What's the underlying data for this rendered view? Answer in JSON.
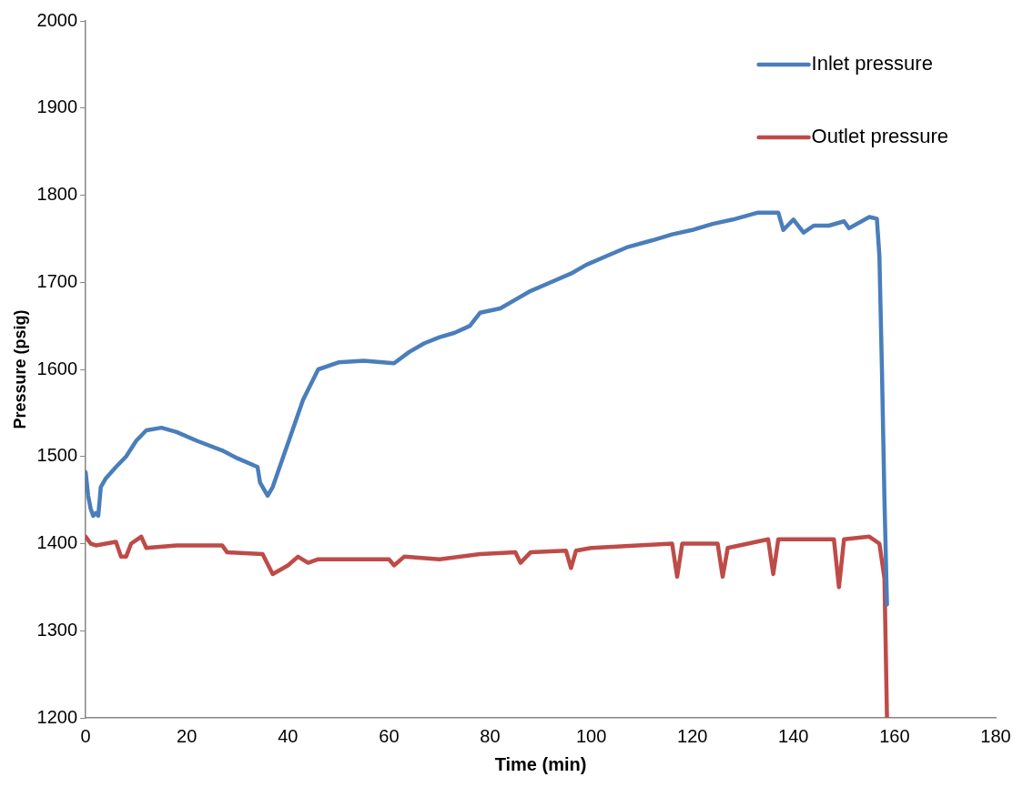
{
  "chart_data": {
    "type": "line",
    "xlabel": "Time (min)",
    "ylabel": "Pressure (psig)",
    "xlim": [
      0,
      180
    ],
    "xticks": [
      0,
      20,
      40,
      60,
      80,
      100,
      120,
      140,
      160,
      180
    ],
    "ylim": [
      1200,
      2000
    ],
    "yticks": [
      1200,
      1300,
      1400,
      1500,
      1600,
      1700,
      1800,
      1900,
      2000
    ],
    "grid": false,
    "legend": "top right",
    "marker": "none",
    "line_style": "solid",
    "series": [
      {
        "name": "Inlet pressure",
        "color": "#4a7ebb",
        "x": [
          0,
          0.5,
          1,
          1.5,
          2,
          2.5,
          3,
          4,
          6,
          8,
          10,
          12,
          15,
          18,
          22,
          27,
          30,
          34,
          34.5,
          36,
          37,
          40,
          43,
          46,
          50,
          55,
          61,
          64,
          67,
          70,
          73,
          76,
          78,
          82,
          85,
          88,
          92,
          96,
          99,
          103,
          107,
          112,
          116,
          120,
          124,
          128,
          133,
          137,
          138,
          140,
          142,
          144,
          147,
          150,
          151,
          155,
          156.5,
          157,
          157.5,
          158,
          158.5
        ],
        "values": [
          1482,
          1455,
          1440,
          1432,
          1435,
          1432,
          1465,
          1475,
          1488,
          1500,
          1518,
          1530,
          1533,
          1528,
          1518,
          1507,
          1498,
          1488,
          1470,
          1455,
          1465,
          1515,
          1565,
          1600,
          1608,
          1610,
          1607,
          1620,
          1630,
          1637,
          1642,
          1650,
          1665,
          1670,
          1680,
          1690,
          1700,
          1710,
          1720,
          1730,
          1740,
          1748,
          1755,
          1760,
          1767,
          1772,
          1780,
          1780,
          1760,
          1772,
          1757,
          1765,
          1765,
          1770,
          1762,
          1775,
          1773,
          1730,
          1600,
          1450,
          1330
        ]
      },
      {
        "name": "Outlet pressure",
        "color": "#be4b48",
        "x": [
          0,
          1,
          2,
          6,
          7,
          8,
          9,
          11,
          12,
          18,
          27,
          28,
          35,
          37,
          40,
          42,
          44,
          46,
          60,
          61,
          63,
          70,
          78,
          85,
          86,
          88,
          95,
          96,
          97,
          100,
          116,
          117,
          118,
          125,
          126,
          127,
          135,
          136,
          137,
          148,
          149,
          150,
          155,
          157,
          158,
          158.5
        ],
        "values": [
          1408,
          1400,
          1398,
          1402,
          1385,
          1385,
          1400,
          1408,
          1395,
          1398,
          1398,
          1390,
          1388,
          1365,
          1375,
          1385,
          1378,
          1382,
          1382,
          1375,
          1385,
          1382,
          1388,
          1390,
          1378,
          1390,
          1392,
          1372,
          1392,
          1395,
          1400,
          1362,
          1400,
          1400,
          1362,
          1395,
          1405,
          1365,
          1405,
          1405,
          1350,
          1405,
          1408,
          1400,
          1360,
          1200
        ]
      }
    ]
  }
}
